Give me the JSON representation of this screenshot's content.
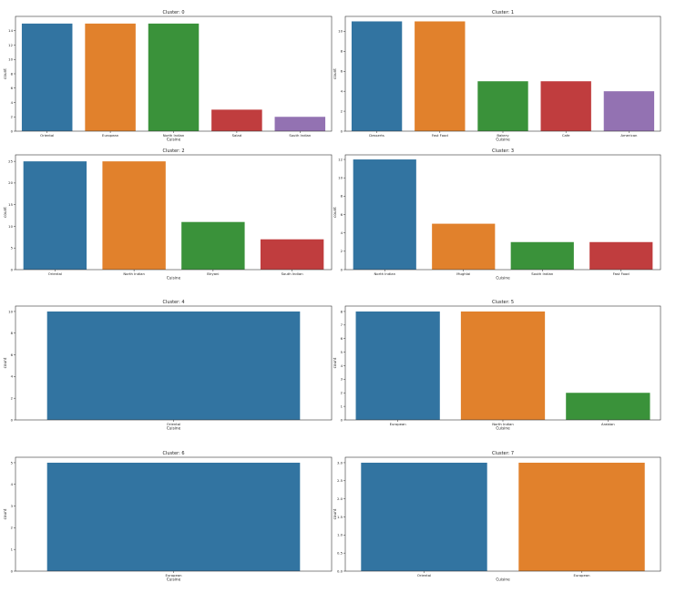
{
  "figure": {
    "background": "#ffffff",
    "axis_color": "#333333"
  },
  "chart_data": [
    {
      "type": "bar",
      "title": "Cluster: 0",
      "xlabel": "Cuisine",
      "ylabel": "count",
      "categories": [
        "Oriental",
        "European",
        "North Indian",
        "Salad",
        "South Indian"
      ],
      "values": [
        15,
        15,
        15,
        3,
        2
      ],
      "colors": [
        "#3274a1",
        "#e1812c",
        "#3a923a",
        "#c03d3e",
        "#9372b2"
      ],
      "ylim": [
        0,
        16
      ],
      "yticks": [
        "0",
        "2",
        "4",
        "6",
        "8",
        "10",
        "12",
        "14"
      ],
      "ytick_values": [
        0,
        2,
        4,
        6,
        8,
        10,
        12,
        14
      ]
    },
    {
      "type": "bar",
      "title": "Cluster: 1",
      "xlabel": "Cuisine",
      "ylabel": "count",
      "categories": [
        "Desserts",
        "Fast Food",
        "Bakery",
        "Cafe",
        "American"
      ],
      "values": [
        11,
        11,
        5,
        5,
        4
      ],
      "colors": [
        "#3274a1",
        "#e1812c",
        "#3a923a",
        "#c03d3e",
        "#9372b2"
      ],
      "ylim": [
        0,
        11.5
      ],
      "yticks": [
        "0",
        "2",
        "4",
        "6",
        "8",
        "10"
      ],
      "ytick_values": [
        0,
        2,
        4,
        6,
        8,
        10
      ]
    },
    {
      "type": "bar",
      "title": "Cluster: 2",
      "xlabel": "Cuisine",
      "ylabel": "count",
      "categories": [
        "Oriental",
        "North Indian",
        "Biryani",
        "South Indian"
      ],
      "values": [
        25,
        25,
        11,
        7
      ],
      "colors": [
        "#3274a1",
        "#e1812c",
        "#3a923a",
        "#c03d3e"
      ],
      "ylim": [
        0,
        26.5
      ],
      "yticks": [
        "0",
        "5",
        "10",
        "15",
        "20",
        "25"
      ],
      "ytick_values": [
        0,
        5,
        10,
        15,
        20,
        25
      ]
    },
    {
      "type": "bar",
      "title": "Cluster: 3",
      "xlabel": "Cuisine",
      "ylabel": "count",
      "categories": [
        "North Indian",
        "Mughlai",
        "South Indian",
        "Fast Food"
      ],
      "values": [
        12,
        5,
        3,
        3
      ],
      "colors": [
        "#3274a1",
        "#e1812c",
        "#3a923a",
        "#c03d3e"
      ],
      "ylim": [
        0,
        12.5
      ],
      "yticks": [
        "0",
        "2",
        "4",
        "6",
        "8",
        "10",
        "12"
      ],
      "ytick_values": [
        0,
        2,
        4,
        6,
        8,
        10,
        12
      ]
    },
    {
      "type": "bar",
      "title": "Cluster: 4",
      "xlabel": "Cuisine",
      "ylabel": "count",
      "categories": [
        "Oriental"
      ],
      "values": [
        10
      ],
      "colors": [
        "#3274a1"
      ],
      "ylim": [
        0,
        10.5
      ],
      "yticks": [
        "0",
        "2",
        "4",
        "6",
        "8",
        "10"
      ],
      "ytick_values": [
        0,
        2,
        4,
        6,
        8,
        10
      ]
    },
    {
      "type": "bar",
      "title": "Cluster: 5",
      "xlabel": "Cuisine",
      "ylabel": "count",
      "categories": [
        "European",
        "North Indian",
        "Arabian"
      ],
      "values": [
        8,
        8,
        2
      ],
      "colors": [
        "#3274a1",
        "#e1812c",
        "#3a923a"
      ],
      "ylim": [
        0,
        8.4
      ],
      "yticks": [
        "0",
        "1",
        "2",
        "3",
        "4",
        "5",
        "6",
        "7",
        "8"
      ],
      "ytick_values": [
        0,
        1,
        2,
        3,
        4,
        5,
        6,
        7,
        8
      ]
    },
    {
      "type": "bar",
      "title": "Cluster: 6",
      "xlabel": "Cuisine",
      "ylabel": "count",
      "categories": [
        "European"
      ],
      "values": [
        5
      ],
      "colors": [
        "#3274a1"
      ],
      "ylim": [
        0,
        5.25
      ],
      "yticks": [
        "0",
        "1",
        "2",
        "3",
        "4",
        "5"
      ],
      "ytick_values": [
        0,
        1,
        2,
        3,
        4,
        5
      ]
    },
    {
      "type": "bar",
      "title": "Cluster: 7",
      "xlabel": "Cuisine",
      "ylabel": "count",
      "categories": [
        "Oriental",
        "European"
      ],
      "values": [
        3,
        3
      ],
      "colors": [
        "#3274a1",
        "#e1812c"
      ],
      "ylim": [
        0,
        3.15
      ],
      "yticks": [
        "0.0",
        "0.5",
        "1.0",
        "1.5",
        "2.0",
        "2.5",
        "3.0"
      ],
      "ytick_values": [
        0,
        0.5,
        1,
        1.5,
        2,
        2.5,
        3
      ]
    }
  ]
}
